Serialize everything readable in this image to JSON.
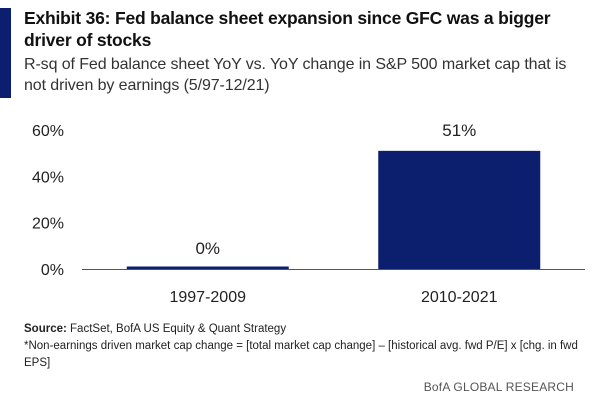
{
  "header": {
    "title": "Exhibit 36: Fed balance sheet expansion since GFC was a bigger driver of stocks",
    "subtitle": "R-sq of Fed balance sheet YoY vs. YoY change in S&P 500 market cap that is not driven by earnings (5/97-12/21)"
  },
  "chart_data": {
    "type": "bar",
    "categories": [
      "1997-2009",
      "2010-2021"
    ],
    "values": [
      0,
      51
    ],
    "data_labels": [
      "0%",
      "51%"
    ],
    "ylim": [
      0,
      60
    ],
    "yticks": [
      0,
      20,
      40,
      60
    ],
    "ytick_labels": [
      "0%",
      "20%",
      "40%",
      "60%"
    ],
    "xlabel": "",
    "ylabel": "",
    "grid": false,
    "legend": "none",
    "bar_color": "#0b1f6e"
  },
  "footer": {
    "source_label": "Source:",
    "source_text": "FactSet, BofA US Equity & Quant Strategy",
    "note": "*Non-earnings driven market cap change = [total market cap change] – [historical avg. fwd P/E] x [chg. in fwd EPS]",
    "brand": "BofA GLOBAL RESEARCH"
  },
  "colors": {
    "accent": "#0b1f6e",
    "axis": "#555555"
  }
}
